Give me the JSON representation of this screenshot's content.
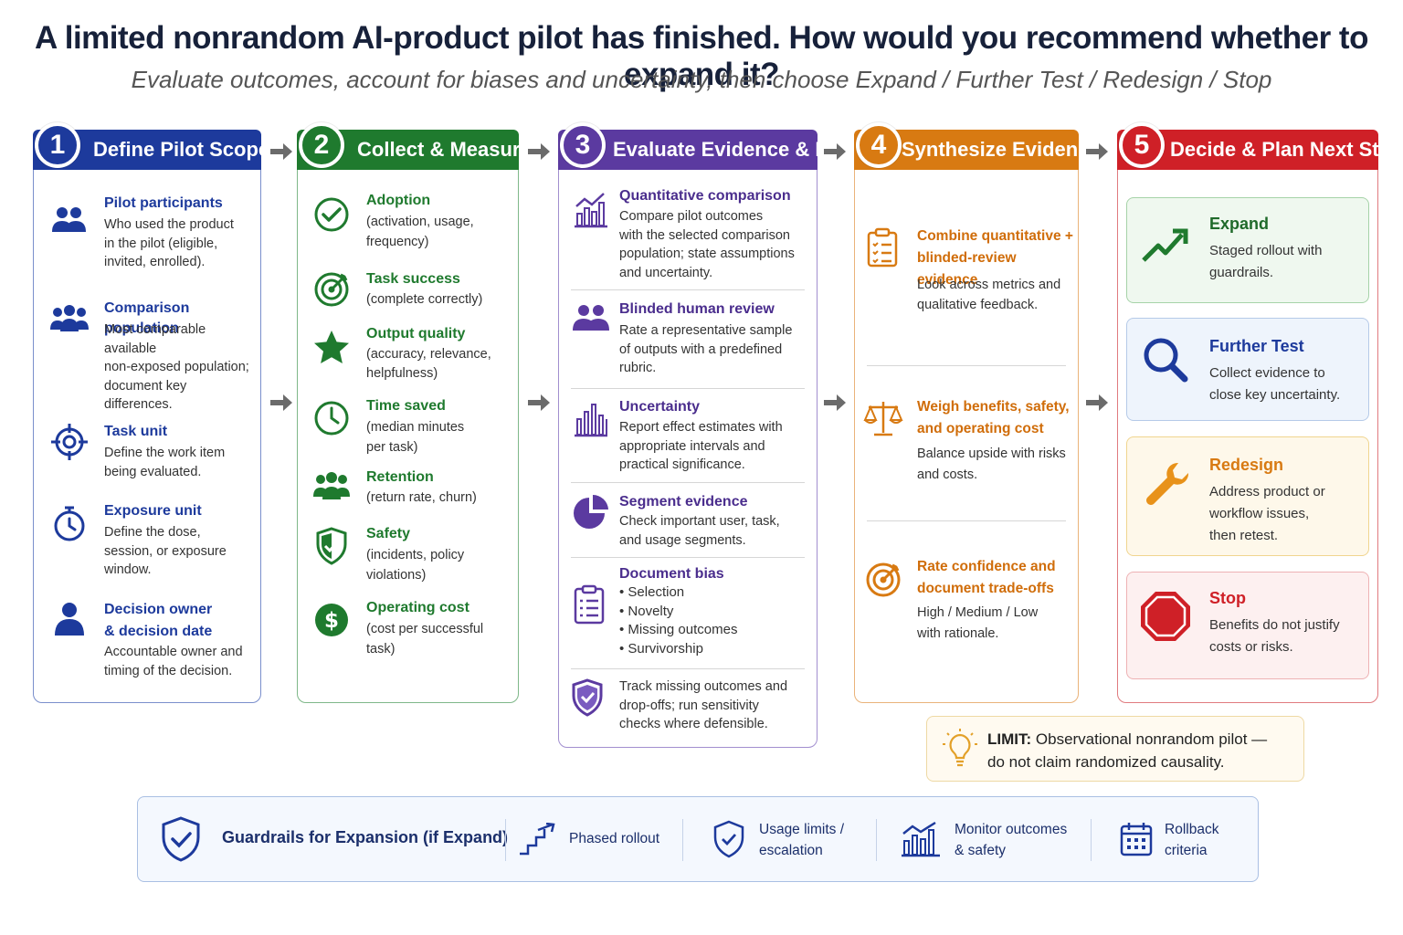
{
  "title": "A limited nonrandom AI-product pilot has finished. How would you recommend whether to expand it?",
  "subtitle": "Evaluate outcomes, account for biases and uncertainty, then choose Expand / Further Test / Redesign / Stop",
  "colors": {
    "blue": "#1d3a9c",
    "green": "#1f7a2e",
    "purple": "#5b3aa0",
    "orange": "#d87a12",
    "red": "#cf2027"
  },
  "step1": {
    "num": "1",
    "label": "Define Pilot Scope",
    "items": [
      {
        "title": "Pilot participants",
        "desc": [
          "Who used the product",
          "in the pilot (eligible,",
          "invited, enrolled)."
        ],
        "icon": "users-icon"
      },
      {
        "title": "Comparison population",
        "desc": [
          "Most comparable available",
          "non-exposed population;",
          "document key",
          "differences."
        ],
        "icon": "group-icon"
      },
      {
        "title": "Task unit",
        "desc": [
          "Define the work item",
          "being evaluated."
        ],
        "icon": "crosshair-icon"
      },
      {
        "title": "Exposure unit",
        "desc": [
          "Define the dose,",
          "session, or exposure",
          "window."
        ],
        "icon": "stopwatch-icon"
      },
      {
        "title": [
          "Decision owner",
          "& decision date"
        ],
        "desc": [
          "Accountable owner and",
          "timing of the decision."
        ],
        "icon": "person-icon"
      }
    ]
  },
  "step2": {
    "num": "2",
    "label": "Collect & Measure",
    "items": [
      {
        "title": "Adoption",
        "desc": [
          "(activation, usage,",
          "frequency)"
        ],
        "icon": "check-circle-icon"
      },
      {
        "title": "Task success",
        "desc": [
          "(complete correctly)"
        ],
        "icon": "target-icon"
      },
      {
        "title": "Output quality",
        "desc": [
          "(accuracy, relevance,",
          "helpfulness)"
        ],
        "icon": "star-icon"
      },
      {
        "title": "Time saved",
        "desc": [
          "(median minutes",
          "per task)"
        ],
        "icon": "clock-icon"
      },
      {
        "title": "Retention",
        "desc": [
          "(return rate, churn)"
        ],
        "icon": "people-icon"
      },
      {
        "title": "Safety",
        "desc": [
          "(incidents, policy",
          "violations)"
        ],
        "icon": "shield-icon"
      },
      {
        "title": "Operating cost",
        "desc": [
          "(cost per successful",
          "task)"
        ],
        "icon": "dollar-icon"
      }
    ]
  },
  "step3": {
    "num": "3",
    "label": "Evaluate Evidence & Bias",
    "items": [
      {
        "title": "Quantitative comparison",
        "desc": [
          "Compare pilot outcomes",
          "with the selected comparison",
          "population; state assumptions",
          "and uncertainty."
        ],
        "icon": "bar-chart-icon"
      },
      {
        "title": "Blinded human review",
        "desc": [
          "Rate a representative sample",
          "of outputs with a predefined",
          "rubric."
        ],
        "icon": "reviewers-icon"
      },
      {
        "title": "Uncertainty",
        "desc": [
          "Report effect estimates with",
          "appropriate intervals and",
          "practical significance."
        ],
        "icon": "interval-chart-icon"
      },
      {
        "title": "Segment evidence",
        "desc": [
          "Check important user, task,",
          "and usage segments."
        ],
        "icon": "pie-chart-icon"
      },
      {
        "title": "Document bias",
        "desc": [
          "• Selection",
          "• Novelty",
          "• Missing outcomes",
          "• Survivorship"
        ],
        "icon": "clipboard-icon"
      },
      {
        "title": "",
        "desc": [
          "Track missing outcomes and",
          "drop-offs; run sensitivity",
          "checks where defensible."
        ],
        "icon": "shield-check-icon"
      }
    ]
  },
  "step4": {
    "num": "4",
    "label": "Synthesize Evidence",
    "items": [
      {
        "title": [
          "Combine quantitative +",
          "blinded-review evidence"
        ],
        "desc": [
          "Look across metrics and",
          "qualitative feedback."
        ],
        "icon": "clipboard-list-icon"
      },
      {
        "title": [
          "Weigh benefits, safety,",
          "and operating cost"
        ],
        "desc": [
          "Balance upside with risks",
          "and costs."
        ],
        "icon": "scale-icon"
      },
      {
        "title": [
          "Rate confidence and",
          "document trade-offs"
        ],
        "desc": [
          "High / Medium / Low",
          "with rationale."
        ],
        "icon": "target-icon"
      }
    ]
  },
  "step5": {
    "num": "5",
    "label": "Decide & Plan Next Step",
    "options": [
      {
        "title": "Expand",
        "desc": [
          "Staged rollout with",
          "guardrails."
        ],
        "icon": "trend-up-icon"
      },
      {
        "title": "Further Test",
        "desc": [
          "Collect evidence to",
          "close key uncertainty."
        ],
        "icon": "magnifier-icon"
      },
      {
        "title": "Redesign",
        "desc": [
          "Address product or",
          "workflow issues,",
          "then retest."
        ],
        "icon": "wrench-icon"
      },
      {
        "title": "Stop",
        "desc": [
          "Benefits do not justify",
          "costs or risks."
        ],
        "icon": "stop-sign-icon"
      }
    ]
  },
  "limit": {
    "label": "LIMIT:",
    "text1": "Observational nonrandom pilot —",
    "text2": "do not claim randomized causality.",
    "icon": "lightbulb-icon"
  },
  "guardrails": {
    "title": "Guardrails for Expansion (if Expand)",
    "items": [
      {
        "label": [
          "Phased rollout"
        ],
        "icon": "stairs-icon"
      },
      {
        "label": [
          "Usage limits /",
          "escalation"
        ],
        "icon": "shield-check-icon"
      },
      {
        "label": [
          "Monitor outcomes",
          "& safety"
        ],
        "icon": "bar-chart-icon"
      },
      {
        "label": [
          "Rollback",
          "criteria"
        ],
        "icon": "calendar-icon"
      }
    ]
  }
}
